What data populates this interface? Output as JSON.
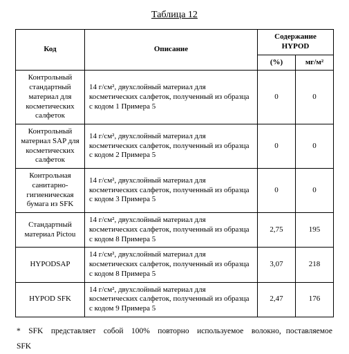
{
  "title": "Таблица 12",
  "headers": {
    "code": "Код",
    "desc": "Описание",
    "hypod_group": "Содержание HYPOD",
    "pct": "(%)",
    "mgm2": "мг/м²"
  },
  "rows": [
    {
      "code": "Контрольный стандартный материал для косметических салфеток",
      "desc": "14 г/см², двухслойный материал для косметических салфеток, полученный из образца с кодом 1 Примера 5",
      "pct": "0",
      "mgm2": "0"
    },
    {
      "code": "Контрольный материал SAP для косметических салфеток",
      "desc": "14 г/см², двухслойный материал для косметических салфеток, полученный из образца с кодом 2 Примера 5",
      "pct": "0",
      "mgm2": "0"
    },
    {
      "code": "Контрольная санитарно-гигиеническая бумага из SFK",
      "desc": "14 г/см², двухслойный материал для косметических салфеток, полученный из образца с кодом 3 Примера 5",
      "pct": "0",
      "mgm2": "0"
    },
    {
      "code": "Стандартный материал Pictou",
      "desc": "14 г/см², двухслойный материал для косметических салфеток, полученный из образца с кодом 8 Примера 5",
      "pct": "2,75",
      "mgm2": "195"
    },
    {
      "code": "HYPODSAP",
      "desc": "14 г/см², двухслойный материал для косметических салфеток, полученный из образца с кодом 8 Примера 5",
      "pct": "3,07",
      "mgm2": "218"
    },
    {
      "code": "HYPOD SFK",
      "desc": "14 г/см², двухслойный материал для косметических салфеток, полученный из образца с кодом 9 Примера 5",
      "pct": "2,47",
      "mgm2": "176"
    }
  ],
  "footnote": "* SFK представляет собой 100% повторно используемое волокно, поставляемое SFK"
}
